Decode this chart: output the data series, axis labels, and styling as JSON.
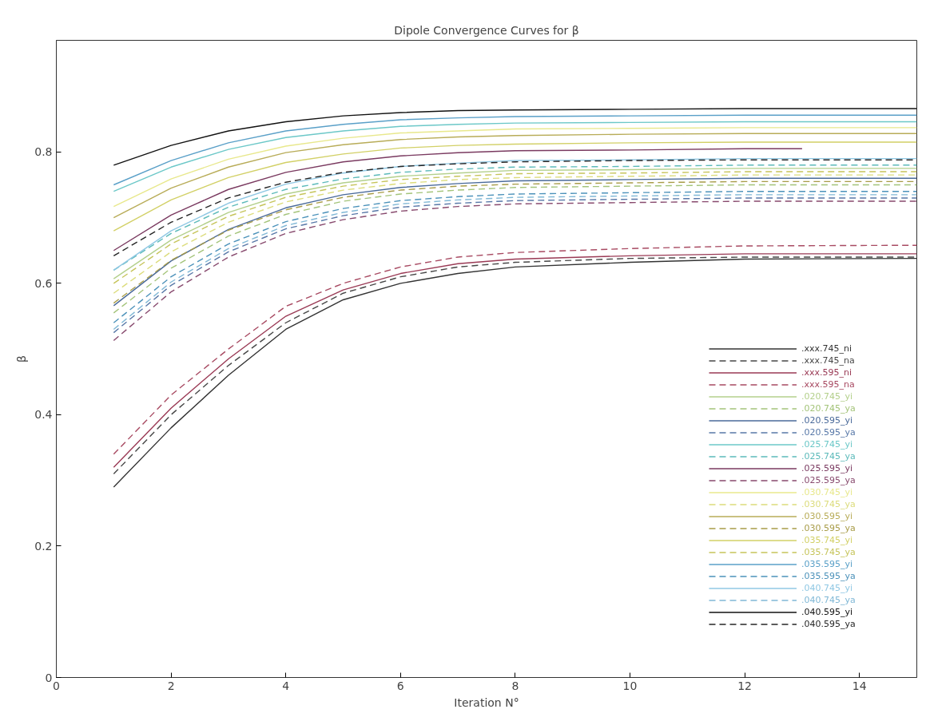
{
  "chart_data": {
    "type": "line",
    "title": "Dipole Convergence Curves for β",
    "xlabel": "Iteration N°",
    "ylabel": "β",
    "x": [
      1,
      2,
      3,
      4,
      5,
      6,
      7,
      8,
      10,
      12,
      15
    ],
    "xlim": [
      0,
      15
    ],
    "ylim": [
      0,
      0.97
    ],
    "xticks": [
      0,
      2,
      4,
      6,
      8,
      10,
      12,
      14
    ],
    "yticks": [
      0,
      0.2,
      0.4,
      0.6,
      0.8
    ],
    "grid": false,
    "legend": "bottom right",
    "marker": "none",
    "series": [
      {
        "name": ".xxx.745_ni",
        "color": "#333333",
        "line_style": "solid",
        "values": [
          0.29,
          0.38,
          0.46,
          0.53,
          0.575,
          0.6,
          0.615,
          0.625,
          0.632,
          0.637,
          0.638
        ]
      },
      {
        "name": ".xxx.745_na",
        "color": "#474747",
        "line_style": "dashed",
        "values": [
          0.31,
          0.4,
          0.475,
          0.54,
          0.585,
          0.61,
          0.625,
          0.632,
          0.638,
          0.64,
          0.64
        ]
      },
      {
        "name": ".xxx.595_ni",
        "color": "#9a3a55",
        "line_style": "solid",
        "values": [
          0.32,
          0.41,
          0.485,
          0.55,
          0.59,
          0.615,
          0.63,
          0.637,
          0.642,
          0.645,
          0.645
        ]
      },
      {
        "name": ".xxx.595_na",
        "color": "#a84a62",
        "line_style": "dashed",
        "values": [
          0.34,
          0.43,
          0.5,
          0.565,
          0.6,
          0.625,
          0.64,
          0.647,
          0.653,
          0.657,
          0.658
        ]
      },
      {
        "name": ".020.745_yi",
        "color": "#b4d08c",
        "line_style": "solid",
        "values": [
          0.607,
          0.666,
          0.708,
          0.736,
          0.753,
          0.763,
          0.768,
          0.772,
          0.773,
          0.775,
          0.775
        ]
      },
      {
        "name": ".020.745_ya",
        "color": "#a4c47a",
        "line_style": "dashed",
        "values": [
          0.555,
          0.623,
          0.672,
          0.705,
          0.725,
          0.736,
          0.742,
          0.746,
          0.748,
          0.75,
          0.75
        ]
      },
      {
        "name": ".020.595_yi",
        "color": "#4a6a9a",
        "line_style": "solid",
        "values": [
          0.566,
          0.634,
          0.682,
          0.715,
          0.735,
          0.746,
          0.752,
          0.756,
          0.758,
          0.76,
          0.76
        ]
      },
      {
        "name": ".020.595_ya",
        "color": "#5878a8",
        "line_style": "dashed",
        "values": [
          0.525,
          0.597,
          0.648,
          0.683,
          0.703,
          0.716,
          0.722,
          0.726,
          0.728,
          0.73,
          0.73
        ]
      },
      {
        "name": ".025.745_yi",
        "color": "#6cc8c8",
        "line_style": "solid",
        "values": [
          0.74,
          0.777,
          0.804,
          0.822,
          0.832,
          0.839,
          0.842,
          0.844,
          0.845,
          0.846,
          0.846
        ]
      },
      {
        "name": ".025.745_ya",
        "color": "#5cbaba",
        "line_style": "dashed",
        "values": [
          0.62,
          0.676,
          0.716,
          0.743,
          0.759,
          0.769,
          0.774,
          0.777,
          0.778,
          0.78,
          0.78
        ]
      },
      {
        "name": ".025.595_yi",
        "color": "#7a3a60",
        "line_style": "solid",
        "x": [
          1,
          2,
          3,
          4,
          5,
          6,
          7,
          8,
          10,
          12,
          13
        ],
        "values": [
          0.65,
          0.704,
          0.743,
          0.769,
          0.785,
          0.794,
          0.799,
          0.802,
          0.803,
          0.805,
          0.805
        ]
      },
      {
        "name": ".025.595_ya",
        "color": "#884a6e",
        "line_style": "dashed",
        "values": [
          0.513,
          0.587,
          0.64,
          0.676,
          0.697,
          0.71,
          0.717,
          0.721,
          0.723,
          0.725,
          0.725
        ]
      },
      {
        "name": ".030.745_yi",
        "color": "#e8e88c",
        "line_style": "solid",
        "values": [
          0.717,
          0.759,
          0.789,
          0.809,
          0.821,
          0.829,
          0.832,
          0.835,
          0.836,
          0.837,
          0.837
        ]
      },
      {
        "name": ".030.745_ya",
        "color": "#dcdc7c",
        "line_style": "dashed",
        "values": [
          0.585,
          0.648,
          0.693,
          0.724,
          0.742,
          0.752,
          0.758,
          0.761,
          0.763,
          0.765,
          0.765
        ]
      },
      {
        "name": ".030.595_yi",
        "color": "#b8ac58",
        "line_style": "solid",
        "values": [
          0.7,
          0.745,
          0.777,
          0.799,
          0.811,
          0.819,
          0.823,
          0.825,
          0.827,
          0.828,
          0.828
        ]
      },
      {
        "name": ".030.595_ya",
        "color": "#a89c48",
        "line_style": "dashed",
        "values": [
          0.57,
          0.635,
          0.681,
          0.712,
          0.731,
          0.742,
          0.748,
          0.751,
          0.753,
          0.755,
          0.755
        ]
      },
      {
        "name": ".035.745_yi",
        "color": "#d2d066",
        "line_style": "solid",
        "values": [
          0.68,
          0.727,
          0.761,
          0.784,
          0.797,
          0.806,
          0.81,
          0.812,
          0.814,
          0.815,
          0.815
        ]
      },
      {
        "name": ".035.745_ya",
        "color": "#c6c45a",
        "line_style": "dashed",
        "values": [
          0.6,
          0.66,
          0.702,
          0.731,
          0.748,
          0.758,
          0.763,
          0.767,
          0.768,
          0.77,
          0.77
        ]
      },
      {
        "name": ".035.595_yi",
        "color": "#5aa0c8",
        "line_style": "solid",
        "values": [
          0.75,
          0.787,
          0.814,
          0.832,
          0.842,
          0.849,
          0.852,
          0.854,
          0.855,
          0.856,
          0.856
        ]
      },
      {
        "name": ".035.595_ya",
        "color": "#4c92ba",
        "line_style": "dashed",
        "values": [
          0.54,
          0.61,
          0.66,
          0.694,
          0.714,
          0.726,
          0.732,
          0.736,
          0.738,
          0.74,
          0.74
        ]
      },
      {
        "name": ".040.745_yi",
        "color": "#90c8e4",
        "line_style": "solid",
        "values": [
          0.62,
          0.68,
          0.722,
          0.751,
          0.768,
          0.778,
          0.783,
          0.787,
          0.788,
          0.79,
          0.79
        ]
      },
      {
        "name": ".040.745_ya",
        "color": "#80b8d6",
        "line_style": "dashed",
        "values": [
          0.53,
          0.602,
          0.653,
          0.688,
          0.708,
          0.721,
          0.727,
          0.731,
          0.733,
          0.735,
          0.735
        ]
      },
      {
        "name": ".040.595_yi",
        "color": "#111111",
        "line_style": "solid",
        "values": [
          0.78,
          0.81,
          0.832,
          0.846,
          0.855,
          0.86,
          0.863,
          0.864,
          0.865,
          0.866,
          0.866
        ]
      },
      {
        "name": ".040.595_ya",
        "color": "#262626",
        "line_style": "dashed",
        "values": [
          0.642,
          0.693,
          0.73,
          0.754,
          0.769,
          0.778,
          0.782,
          0.785,
          0.787,
          0.788,
          0.788
        ]
      }
    ]
  }
}
